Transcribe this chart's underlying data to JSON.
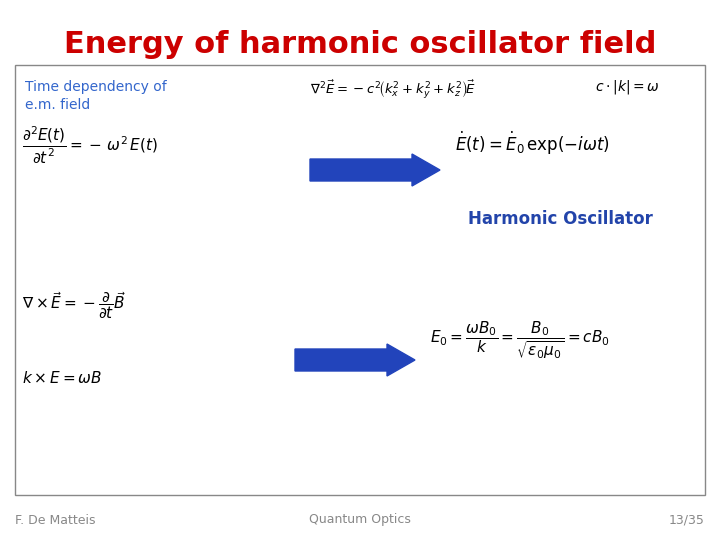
{
  "title": "Energy of harmonic oscillator field",
  "title_color": "#cc0000",
  "title_fontsize": 22,
  "background_color": "#ffffff",
  "box_border_color": "#888888",
  "label_color": "#3366cc",
  "label_text1": "Time dependency of",
  "label_text2": "e.m. field",
  "harmonic_osc_label": "Harmonic Oscillator",
  "harmonic_osc_color": "#2244aa",
  "footer_left": "F. De Matteis",
  "footer_center": "Quantum Optics",
  "footer_right": "13/35",
  "footer_color": "#888888",
  "arrow_color": "#2244bb"
}
